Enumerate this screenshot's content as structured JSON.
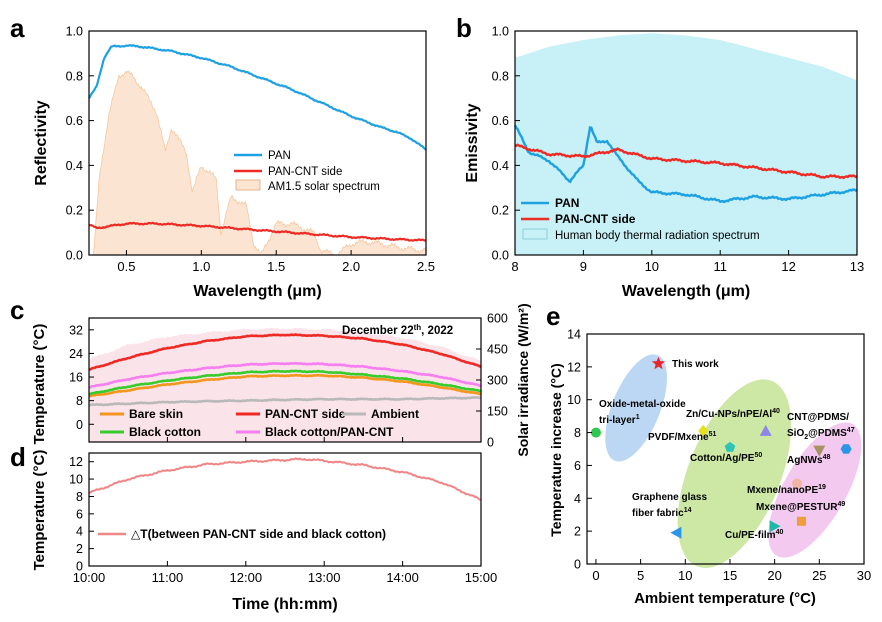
{
  "colors": {
    "pan": "#1da1e2",
    "pan_cnt": "#ee2a24",
    "solar_fill": "#fbe5d2",
    "solar_stroke": "#f6c79f",
    "thermal_fill": "#c7f1f6",
    "bare_skin": "#f2961e",
    "ambient": "#b9b9b9",
    "black_cotton": "#37cc2c",
    "black_cotton_pan_cnt": "#f67ef0",
    "delta_t": "#f08585",
    "solar_irr_fill": "#fbe3ea"
  },
  "panel_labels": {
    "a": "a",
    "b": "b",
    "c": "c",
    "d": "d",
    "e": "e"
  },
  "chart_data": [
    {
      "id": "a",
      "type": "line",
      "xlabel": "Wavelength (μm)",
      "ylabel": "Reflectivity",
      "xlim": [
        0.25,
        2.5
      ],
      "ylim": [
        0.0,
        1.0
      ],
      "xticks": [
        "0.5",
        "1.0",
        "1.5",
        "2.0",
        "2.5"
      ],
      "yticks": [
        "0.0",
        "0.2",
        "0.4",
        "0.6",
        "0.8",
        "1.0"
      ],
      "legend": [
        "PAN",
        "PAN-CNT side",
        "AM1.5 solar spectrum"
      ],
      "series": [
        {
          "name": "PAN",
          "x": [
            0.25,
            0.3,
            0.35,
            0.4,
            0.5,
            0.6,
            0.8,
            1.0,
            1.2,
            1.4,
            1.6,
            1.8,
            2.0,
            2.2,
            2.3,
            2.4,
            2.5
          ],
          "y": [
            0.7,
            0.75,
            0.88,
            0.93,
            0.935,
            0.93,
            0.91,
            0.88,
            0.84,
            0.79,
            0.74,
            0.68,
            0.62,
            0.57,
            0.55,
            0.52,
            0.47
          ]
        },
        {
          "name": "PAN-CNT side",
          "x": [
            0.25,
            0.3,
            0.5,
            0.7,
            1.0,
            1.3,
            1.6,
            2.0,
            2.3,
            2.5
          ],
          "y": [
            0.135,
            0.12,
            0.14,
            0.14,
            0.13,
            0.115,
            0.1,
            0.08,
            0.07,
            0.065
          ]
        },
        {
          "name": "AM1.5 solar spectrum",
          "x": [
            0.28,
            0.32,
            0.38,
            0.45,
            0.5,
            0.55,
            0.6,
            0.7,
            0.76,
            0.8,
            0.9,
            0.94,
            1.0,
            1.1,
            1.13,
            1.2,
            1.3,
            1.35,
            1.4,
            1.5,
            1.6,
            1.75,
            1.8,
            1.9,
            2.0,
            2.1,
            2.2,
            2.35,
            2.5
          ],
          "y": [
            0.0,
            0.35,
            0.62,
            0.8,
            0.82,
            0.79,
            0.75,
            0.64,
            0.46,
            0.57,
            0.46,
            0.28,
            0.4,
            0.34,
            0.1,
            0.26,
            0.22,
            0.05,
            0.0,
            0.14,
            0.14,
            0.1,
            0.02,
            0.0,
            0.05,
            0.06,
            0.05,
            0.03,
            0.02
          ]
        }
      ]
    },
    {
      "id": "b",
      "type": "line",
      "xlabel": "Wavelength (μm)",
      "ylabel": "Emissivity",
      "xlim": [
        8,
        13
      ],
      "ylim": [
        0.0,
        1.0
      ],
      "xticks": [
        "8",
        "9",
        "10",
        "11",
        "12",
        "13"
      ],
      "yticks": [
        "0.0",
        "0.2",
        "0.4",
        "0.6",
        "0.8",
        "1.0"
      ],
      "legend": [
        "PAN",
        "PAN-CNT side",
        "Human body thermal radiation spectrum"
      ],
      "series": [
        {
          "name": "PAN",
          "x": [
            8.0,
            8.2,
            8.5,
            8.8,
            9.0,
            9.1,
            9.2,
            9.35,
            9.5,
            9.8,
            10.0,
            10.5,
            11.0,
            11.5,
            12.0,
            12.5,
            13.0
          ],
          "y": [
            0.58,
            0.46,
            0.42,
            0.33,
            0.4,
            0.58,
            0.5,
            0.51,
            0.44,
            0.33,
            0.28,
            0.27,
            0.24,
            0.26,
            0.25,
            0.27,
            0.29
          ]
        },
        {
          "name": "PAN-CNT side",
          "x": [
            8.0,
            8.5,
            9.0,
            9.5,
            10.0,
            10.5,
            11.0,
            11.5,
            12.0,
            12.5,
            13.0
          ],
          "y": [
            0.49,
            0.45,
            0.44,
            0.47,
            0.43,
            0.42,
            0.41,
            0.39,
            0.37,
            0.35,
            0.35
          ]
        },
        {
          "name": "Human body thermal radiation spectrum",
          "x": [
            8.0,
            8.5,
            9.0,
            9.5,
            10.0,
            10.5,
            11.0,
            11.5,
            12.0,
            12.5,
            13.0
          ],
          "y": [
            0.88,
            0.93,
            0.96,
            0.98,
            0.99,
            0.98,
            0.96,
            0.92,
            0.88,
            0.84,
            0.78
          ]
        }
      ]
    },
    {
      "id": "c",
      "type": "line",
      "annotation": {
        "prefix": "December 22",
        "sup": "th",
        "suffix": ", 2022"
      },
      "ylabel": "Temperature (°C)",
      "ylabel_right": "Solar irradiance (W/m²)",
      "ylim": [
        -6,
        36
      ],
      "ylim_right": [
        0,
        600
      ],
      "yticks": [
        "0",
        "8",
        "16",
        "24",
        "32"
      ],
      "yticks_right": [
        "0",
        "150",
        "300",
        "450",
        "600"
      ],
      "legend": [
        "Bare skin",
        "PAN-CNT side",
        "Ambient",
        "Black cotton",
        "Black cotton/PAN-CNT"
      ],
      "x_hours": [
        10.0,
        10.5,
        11.0,
        11.5,
        12.0,
        12.5,
        13.0,
        13.5,
        14.0,
        14.5,
        15.0
      ],
      "series": [
        {
          "name": "Bare skin",
          "values": [
            9.5,
            11.5,
            13.5,
            15.0,
            16.2,
            16.5,
            16.5,
            15.8,
            14.5,
            12.5,
            10.2
          ]
        },
        {
          "name": "PAN-CNT side",
          "values": [
            18.5,
            22.5,
            25.8,
            28.2,
            29.8,
            30.3,
            30.0,
            29.0,
            27.0,
            23.8,
            19.5
          ]
        },
        {
          "name": "Ambient",
          "values": [
            6.5,
            7.0,
            7.5,
            7.8,
            8.0,
            8.3,
            8.5,
            8.5,
            8.5,
            8.8,
            9.0
          ]
        },
        {
          "name": "Black cotton",
          "values": [
            10.2,
            12.8,
            14.8,
            16.4,
            17.6,
            18.0,
            17.8,
            16.8,
            15.5,
            13.5,
            11.2
          ]
        },
        {
          "name": "Black cotton/PAN-CNT",
          "values": [
            12.5,
            15.3,
            17.4,
            19.0,
            20.2,
            20.6,
            20.4,
            19.5,
            18.0,
            16.0,
            13.0
          ]
        },
        {
          "name": "Solar irradiance",
          "axis": "right",
          "values": [
            400,
            470,
            510,
            530,
            545,
            550,
            545,
            530,
            505,
            460,
            390
          ]
        }
      ]
    },
    {
      "id": "d",
      "type": "line",
      "ylabel": "Temperature (°C)",
      "xlabel": "Time (hh:mm)",
      "ylim": [
        0,
        13
      ],
      "yticks": [
        "0",
        "2",
        "4",
        "6",
        "8",
        "10",
        "12"
      ],
      "xticks": [
        "10:00",
        "11:00",
        "12:00",
        "13:00",
        "14:00",
        "15:00"
      ],
      "legend_prefix": "△",
      "legend_text": "T(between PAN-CNT side and black cotton)",
      "x_hours": [
        10.0,
        10.25,
        10.5,
        11.0,
        11.5,
        12.0,
        12.5,
        12.75,
        13.0,
        13.5,
        14.0,
        14.5,
        15.0
      ],
      "series": [
        {
          "name": "ΔT",
          "values": [
            8.4,
            9.2,
            10.0,
            11.0,
            11.7,
            12.0,
            12.2,
            12.3,
            12.1,
            11.6,
            10.8,
            9.6,
            7.6
          ]
        }
      ]
    },
    {
      "id": "e",
      "type": "scatter",
      "xlabel": "Ambient temperature (°C)",
      "ylabel": "Temperature increase (°C)",
      "xlim": [
        -1,
        30
      ],
      "ylim": [
        0,
        14
      ],
      "xticks": [
        "0",
        "5",
        "10",
        "15",
        "20",
        "25",
        "30"
      ],
      "yticks": [
        "0",
        "2",
        "4",
        "6",
        "8",
        "10",
        "12",
        "14"
      ],
      "points": [
        {
          "label": "This work",
          "x": 7,
          "y": 12.2,
          "marker": "star",
          "color": "#e8262b"
        },
        {
          "label": "Oxide-metal-oxide tri-layer",
          "sup": "1",
          "x": 0,
          "y": 8.0,
          "marker": "circle",
          "color": "#2dc84d"
        },
        {
          "label": "Zn/Cu-NPs/nPE/Al",
          "sup": "40",
          "x": 19,
          "y": 8.1,
          "marker": "triangle-up",
          "color": "#8e86e6"
        },
        {
          "label": "PVDF/Mxene",
          "sup": "51",
          "x": 12,
          "y": 8.1,
          "marker": "diamond",
          "color": "#e6e01a"
        },
        {
          "label": "Cotton/Ag/PE",
          "sup": "50",
          "x": 15,
          "y": 7.1,
          "marker": "pentagon",
          "color": "#2ec4b6"
        },
        {
          "label": "CNT@PDMS/SiO2@PDMS",
          "sup": "47",
          "x": 28,
          "y": 7.0,
          "marker": "hexagon",
          "color": "#2b95e8"
        },
        {
          "label": "AgNWs",
          "sup": "48",
          "x": 25,
          "y": 6.9,
          "marker": "triangle-down",
          "color": "#a89263"
        },
        {
          "label": "Mxene/nanoPE",
          "sup": "19",
          "x": 22.5,
          "y": 4.9,
          "marker": "circle",
          "color": "#f1b3a6"
        },
        {
          "label": "Mxene@PESTUR",
          "sup": "49",
          "x": 23,
          "y": 2.6,
          "marker": "square",
          "color": "#f29d3c"
        },
        {
          "label": "Graphene glass fiber fabric",
          "sup": "14",
          "x": 9,
          "y": 1.9,
          "marker": "triangle-left",
          "color": "#2b95e8"
        },
        {
          "label": "Cu/PE-film",
          "sup": "40",
          "x": 20,
          "y": 2.3,
          "marker": "triangle-right",
          "color": "#1db8a6"
        }
      ],
      "ellipses": [
        "#bcd7f3",
        "#cde8a4",
        "#f3c9ef"
      ]
    }
  ],
  "text": {
    "a_xlabel": "Wavelength (μm)",
    "a_ylabel": "Reflectivity",
    "b_xlabel": "Wavelength (μm)",
    "b_ylabel": "Emissivity",
    "c_ylabel": "Temperature (°C)",
    "c_ylabel_right": "Solar irradiance (W/m²)",
    "d_ylabel": "Temperature (°C)",
    "d_xlabel": "Time (hh:mm)",
    "e_xlabel": "Ambient temperature (°C)",
    "e_ylabel": "Temperature increase (°C)"
  }
}
